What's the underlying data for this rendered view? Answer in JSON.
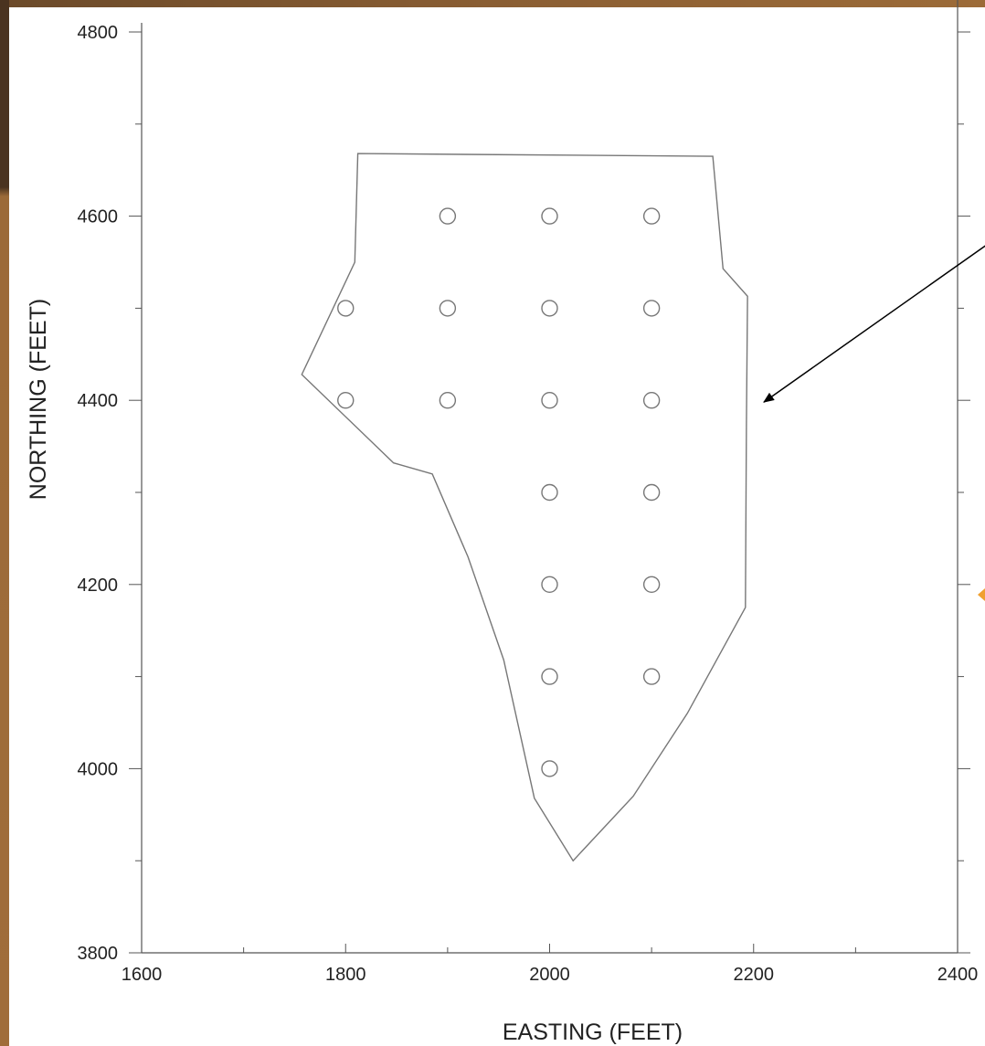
{
  "chart_data": {
    "type": "scatter",
    "xlabel": "EASTING (FEET)",
    "ylabel": "NORTHING (FEET)",
    "xlim": [
      1600,
      2400
    ],
    "ylim": [
      3800,
      4800
    ],
    "xticks": [
      1600,
      1800,
      2000,
      2200,
      2400
    ],
    "yticks": [
      3800,
      4000,
      4200,
      4400,
      4600,
      4800
    ],
    "x_minor_step": 100,
    "y_minor_step": 100,
    "grid": false,
    "points": [
      {
        "x": 1900,
        "y": 4600
      },
      {
        "x": 2000,
        "y": 4600
      },
      {
        "x": 2100,
        "y": 4600
      },
      {
        "x": 1800,
        "y": 4500
      },
      {
        "x": 1900,
        "y": 4500
      },
      {
        "x": 2000,
        "y": 4500
      },
      {
        "x": 2100,
        "y": 4500
      },
      {
        "x": 1800,
        "y": 4400
      },
      {
        "x": 1900,
        "y": 4400
      },
      {
        "x": 2000,
        "y": 4400
      },
      {
        "x": 2100,
        "y": 4400
      },
      {
        "x": 2000,
        "y": 4300
      },
      {
        "x": 2100,
        "y": 4300
      },
      {
        "x": 2000,
        "y": 4200
      },
      {
        "x": 2100,
        "y": 4200
      },
      {
        "x": 2000,
        "y": 4100
      },
      {
        "x": 2100,
        "y": 4100
      },
      {
        "x": 2000,
        "y": 4000
      }
    ],
    "boundary": [
      [
        1812,
        4668
      ],
      [
        2160,
        4665
      ],
      [
        2170,
        4543
      ],
      [
        2194,
        4513
      ],
      [
        2193,
        4375
      ],
      [
        2192,
        4175
      ],
      [
        2135,
        4060
      ],
      [
        2082,
        3970
      ],
      [
        2023,
        3900
      ],
      [
        1985,
        3968
      ],
      [
        1955,
        4118
      ],
      [
        1920,
        4230
      ],
      [
        1885,
        4320
      ],
      [
        1847,
        4332
      ],
      [
        1757,
        4428
      ],
      [
        1809,
        4550
      ]
    ],
    "annotation_arrow": {
      "from": [
        2430,
        4570
      ],
      "to": [
        2210,
        4398
      ]
    },
    "colors": {
      "axis": "#555555",
      "boundary": "#777777",
      "marker": "#777777",
      "arrow": "#000000",
      "accent": "#f0a030"
    }
  }
}
